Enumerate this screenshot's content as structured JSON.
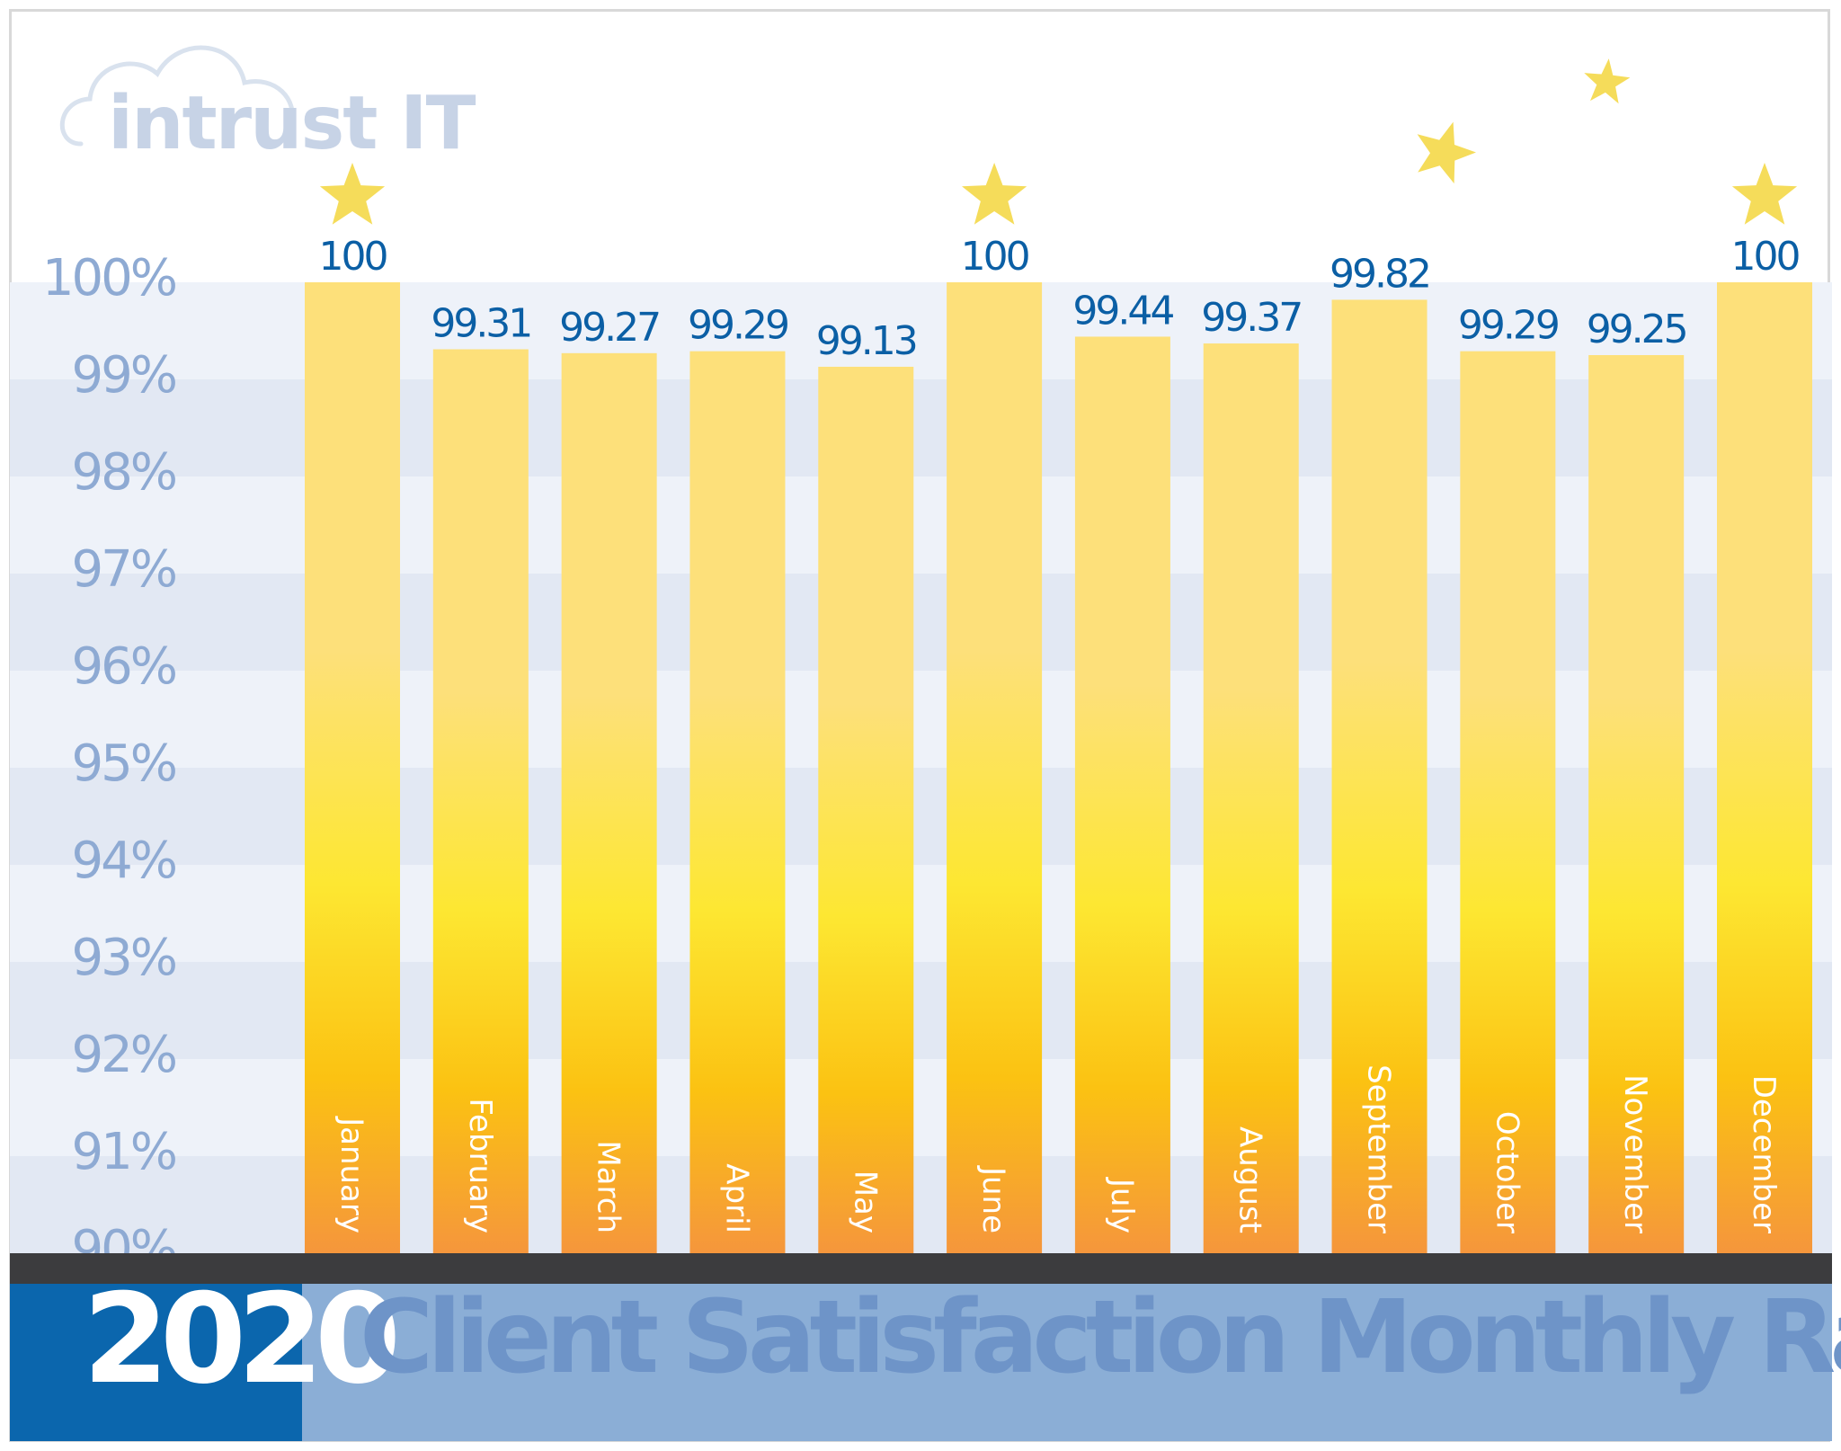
{
  "logo": {
    "text": "intrust IT"
  },
  "footer": {
    "year": "2020",
    "title": "Client Satisfaction Monthly Rating"
  },
  "colors": {
    "band_light": "#eef2f9",
    "band_dark": "#e2e8f3",
    "axis_text": "#8eaad3",
    "value_label": "#0b5fa5",
    "bar_top": "#fde07a",
    "bar_mid": "#fde732",
    "bar_low": "#fbc212",
    "bar_bottom": "#f5963c",
    "star": "#f5dc5a",
    "baseline": "#3c3c3e",
    "year_block": "#0b66ad",
    "title_block": "#8baed6"
  },
  "chart_data": {
    "type": "bar",
    "title": "Client Satisfaction Monthly Rating",
    "categories": [
      "January",
      "February",
      "March",
      "April",
      "May",
      "June",
      "July",
      "August",
      "September",
      "October",
      "November",
      "December"
    ],
    "values": [
      100,
      99.31,
      99.27,
      99.29,
      99.13,
      100,
      99.44,
      99.37,
      99.82,
      99.29,
      99.25,
      100
    ],
    "value_labels": [
      "100",
      "99.31",
      "99.27",
      "99.29",
      "99.13",
      "100",
      "99.44",
      "99.37",
      "99.82",
      "99.29",
      "99.25",
      "100"
    ],
    "ylim": [
      90,
      100
    ],
    "yticks": [
      "90%",
      "91%",
      "92%",
      "93%",
      "94%",
      "95%",
      "96%",
      "97%",
      "98%",
      "99%",
      "100%"
    ],
    "stars_on": [
      "January",
      "June",
      "December"
    ],
    "decorative_stars": 2,
    "grid": "alternating horizontal bands"
  }
}
